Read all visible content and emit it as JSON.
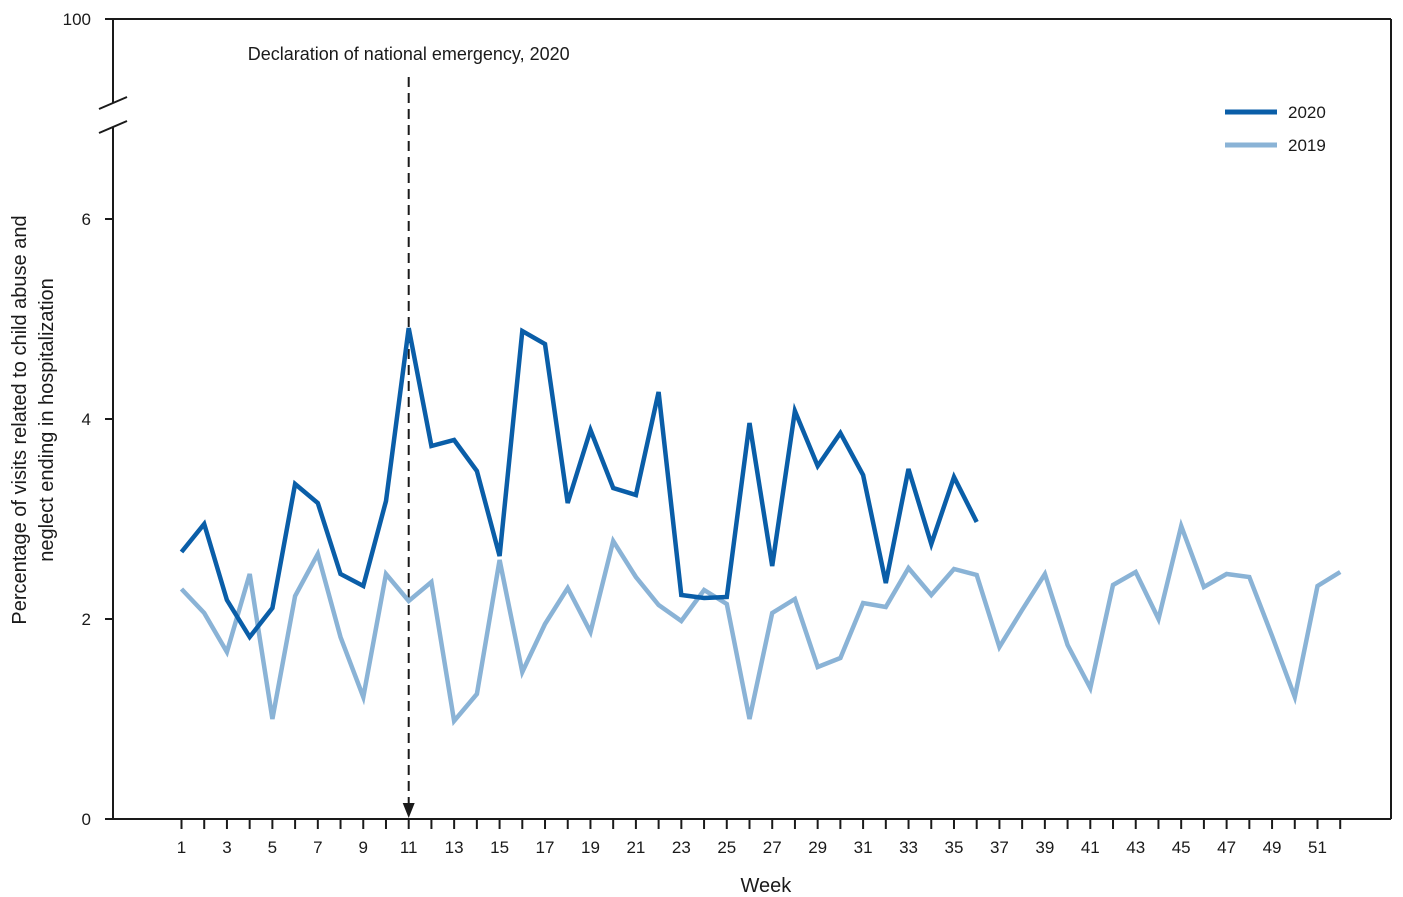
{
  "chart_data": {
    "type": "line",
    "title": "",
    "xlabel": "Week",
    "ylabel_lines": [
      "Percentage of visits related to child abuse and",
      "neglect ending in hospitalization"
    ],
    "x_range": [
      1,
      52
    ],
    "y_range": [
      0,
      7
    ],
    "y_axis_break": true,
    "y_top_tick": "100",
    "y_ticks": [
      0,
      2,
      4,
      6
    ],
    "x_ticks_all": [
      1,
      2,
      3,
      4,
      5,
      6,
      7,
      8,
      9,
      10,
      11,
      12,
      13,
      14,
      15,
      16,
      17,
      18,
      19,
      20,
      21,
      22,
      23,
      24,
      25,
      26,
      27,
      28,
      29,
      30,
      31,
      32,
      33,
      34,
      35,
      36,
      37,
      38,
      39,
      40,
      41,
      42,
      43,
      44,
      45,
      46,
      47,
      48,
      49,
      50,
      51,
      52
    ],
    "x_tick_labels": [
      1,
      3,
      5,
      7,
      9,
      11,
      13,
      15,
      17,
      19,
      21,
      23,
      25,
      27,
      29,
      31,
      33,
      35,
      37,
      39,
      41,
      43,
      45,
      47,
      49,
      51
    ],
    "grid": false,
    "legend_position": "top-right",
    "annotation": {
      "text": "Declaration of national emergency, 2020",
      "x": 11
    },
    "series": [
      {
        "name": "2020",
        "color": "#0a5ea8",
        "x": [
          1,
          2,
          3,
          4,
          5,
          6,
          7,
          8,
          9,
          10,
          11,
          12,
          13,
          14,
          15,
          16,
          17,
          18,
          19,
          20,
          21,
          22,
          23,
          24,
          25,
          26,
          27,
          28,
          29,
          30,
          31,
          32,
          33,
          34,
          35,
          36
        ],
        "values": [
          2.67,
          2.95,
          2.19,
          1.82,
          2.11,
          3.35,
          3.16,
          2.45,
          2.33,
          3.18,
          4.91,
          3.73,
          3.79,
          3.48,
          2.63,
          4.88,
          4.75,
          3.16,
          3.89,
          3.31,
          3.24,
          4.27,
          2.24,
          2.21,
          2.22,
          3.96,
          2.53,
          4.08,
          3.53,
          3.86,
          3.44,
          2.36,
          3.5,
          2.75,
          3.42,
          2.97
        ]
      },
      {
        "name": "2019",
        "color": "#8ab3d6",
        "x": [
          1,
          2,
          3,
          4,
          5,
          6,
          7,
          8,
          9,
          10,
          11,
          12,
          13,
          14,
          15,
          16,
          17,
          18,
          19,
          20,
          21,
          22,
          23,
          24,
          25,
          26,
          27,
          28,
          29,
          30,
          31,
          32,
          33,
          34,
          35,
          36,
          37,
          38,
          39,
          40,
          41,
          42,
          43,
          44,
          45,
          46,
          47,
          48,
          49,
          50,
          51,
          52
        ],
        "values": [
          2.3,
          2.06,
          1.67,
          2.45,
          1.0,
          2.23,
          2.65,
          1.82,
          1.22,
          2.45,
          2.18,
          2.37,
          0.98,
          1.25,
          2.59,
          1.47,
          1.95,
          2.31,
          1.87,
          2.78,
          2.42,
          2.14,
          1.98,
          2.29,
          2.15,
          1.0,
          2.06,
          2.2,
          1.52,
          1.61,
          2.16,
          2.12,
          2.51,
          2.24,
          2.5,
          2.44,
          1.72,
          2.09,
          2.45,
          1.74,
          1.31,
          2.34,
          2.47,
          2.0,
          2.93,
          2.32,
          2.45,
          2.42,
          1.83,
          1.22,
          2.33,
          2.47
        ]
      }
    ]
  }
}
